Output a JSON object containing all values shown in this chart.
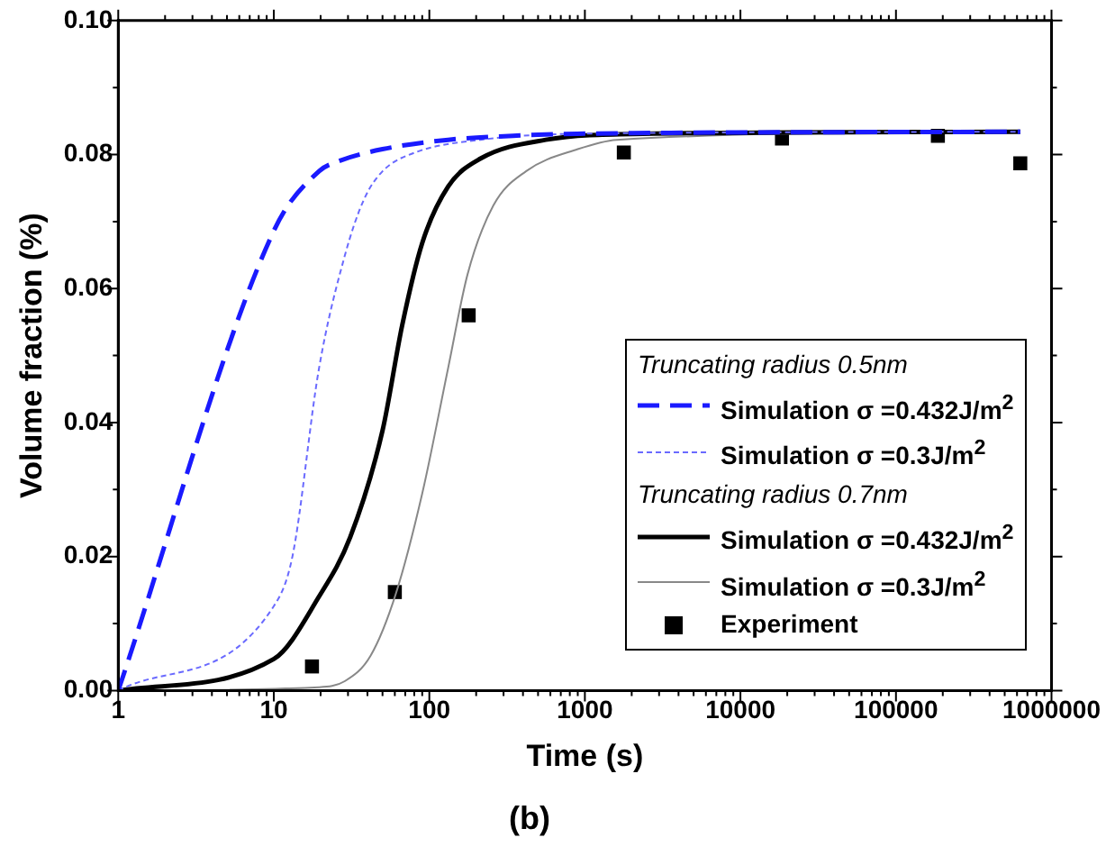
{
  "chart_data": {
    "type": "line",
    "title": "(b)",
    "xlabel": "Time (s)",
    "ylabel": "Volume fraction (%)",
    "log": "x",
    "xlim": [
      1,
      1000000
    ],
    "ylim": [
      0,
      0.1
    ],
    "xticks": [
      1,
      {
        "value": 2,
        "label": null
      },
      {
        "value": 3,
        "label": null
      },
      {
        "value": 4,
        "label": null
      },
      {
        "value": 5,
        "label": null
      },
      {
        "value": 6,
        "label": null
      },
      {
        "value": 7,
        "label": null
      },
      {
        "value": 8,
        "label": null
      },
      {
        "value": 9,
        "label": null
      },
      10,
      {
        "value": 20,
        "label": null
      },
      {
        "value": 30,
        "label": null
      },
      {
        "value": 40,
        "label": null
      },
      {
        "value": 50,
        "label": null
      },
      {
        "value": 60,
        "label": null
      },
      {
        "value": 70,
        "label": null
      },
      {
        "value": 80,
        "label": null
      },
      {
        "value": 90,
        "label": null
      },
      100,
      {
        "value": 200,
        "label": null
      },
      {
        "value": 300,
        "label": null
      },
      {
        "value": 400,
        "label": null
      },
      {
        "value": 500,
        "label": null
      },
      {
        "value": 600,
        "label": null
      },
      {
        "value": 700,
        "label": null
      },
      {
        "value": 800,
        "label": null
      },
      {
        "value": 900,
        "label": null
      },
      1000,
      {
        "value": 2000,
        "label": null
      },
      {
        "value": 3000,
        "label": null
      },
      {
        "value": 4000,
        "label": null
      },
      {
        "value": 5000,
        "label": null
      },
      {
        "value": 6000,
        "label": null
      },
      {
        "value": 7000,
        "label": null
      },
      {
        "value": 8000,
        "label": null
      },
      {
        "value": 9000,
        "label": null
      },
      10000,
      {
        "value": 20000,
        "label": null
      },
      {
        "value": 30000,
        "label": null
      },
      {
        "value": 40000,
        "label": null
      },
      {
        "value": 50000,
        "label": null
      },
      {
        "value": 60000,
        "label": null
      },
      {
        "value": 70000,
        "label": null
      },
      {
        "value": 80000,
        "label": null
      },
      {
        "value": 90000,
        "label": null
      },
      100000,
      {
        "value": 200000,
        "label": null
      },
      {
        "value": 300000,
        "label": null
      },
      {
        "value": 400000,
        "label": null
      },
      {
        "value": 500000,
        "label": null
      },
      {
        "value": 600000,
        "label": null
      },
      {
        "value": 700000,
        "label": null
      },
      {
        "value": 800000,
        "label": null
      },
      {
        "value": 900000,
        "label": null
      },
      1000000
    ],
    "yticks": [
      {
        "value": 0,
        "label": "0.00"
      },
      {
        "value": 0.01,
        "label": null
      },
      0.02,
      {
        "value": 0.03,
        "label": null
      },
      0.04,
      {
        "value": 0.05,
        "label": null
      },
      0.06,
      {
        "value": 0.07,
        "label": null
      },
      0.08,
      {
        "value": 0.09,
        "label": null
      },
      {
        "value": 0.1,
        "label": "0.10"
      }
    ],
    "grid": false,
    "legend": "bottom right",
    "annotations": [
      "Truncating radius 0.5nm",
      "Truncating radius 0.7nm"
    ],
    "series": [
      {
        "name": "Simulation σ =0.432J/m$^{2}$",
        "color": "#1a1aff",
        "line_style": "dashed",
        "marker": "none",
        "x": [
          1,
          10,
          19.5,
          26,
          50,
          132,
          345,
          890,
          630000
        ],
        "values": [
          0,
          0.0686,
          0.0775,
          0.079,
          0.0808,
          0.0822,
          0.0828,
          0.0831,
          0.0834
        ]
      },
      {
        "name": "Simulation σ =0.3J/m$^{2}$",
        "color": "#6a6aff",
        "line_style": "dotted",
        "marker": "none",
        "x": [
          1,
          10,
          13.2,
          19.5,
          28.6,
          38,
          50,
          81,
          213,
          890,
          630000
        ],
        "values": [
          0,
          0.0126,
          0.0201,
          0.048,
          0.0649,
          0.0733,
          0.0775,
          0.0803,
          0.0822,
          0.0831,
          0.0834
        ]
      },
      {
        "name": "Simulation σ =0.432J/m$^{2}$",
        "color": "#000000",
        "line_style": "solid",
        "marker": "none",
        "x": [
          1,
          10,
          19.5,
          31,
          50,
          67,
          90,
          132,
          213,
          560,
          2360,
          630000
        ],
        "values": [
          0,
          0.0047,
          0.014,
          0.0229,
          0.0388,
          0.0546,
          0.0668,
          0.0752,
          0.0794,
          0.0822,
          0.0831,
          0.0834
        ]
      },
      {
        "name": "Simulation σ =0.3J/m$^{2}$",
        "color": "#888888",
        "line_style": "solid",
        "marker": "none",
        "x": [
          1,
          19.5,
          28.6,
          41.9,
          61,
          90,
          132,
          176,
          258,
          418,
          900,
          1600,
          630000
        ],
        "values": [
          0,
          0.0005,
          0.0014,
          0.0052,
          0.0145,
          0.0294,
          0.0481,
          0.0621,
          0.0724,
          0.0775,
          0.0808,
          0.0822,
          0.0834
        ]
      },
      {
        "name": "Experiment",
        "type": "scatter",
        "color": "#000000",
        "marker": "square",
        "x": [
          17.6,
          60,
          179,
          1780,
          18500,
          186000,
          630000
        ],
        "values": [
          0.0036,
          0.0147,
          0.056,
          0.0803,
          0.0824,
          0.0828,
          0.0787
        ]
      }
    ]
  }
}
